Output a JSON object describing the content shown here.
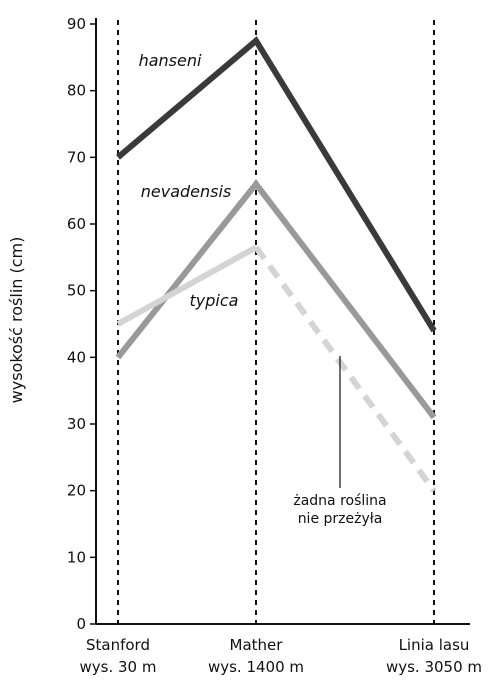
{
  "chart_data": {
    "type": "line",
    "title": "",
    "ylabel": "wysokość roślin (cm)",
    "ylim": [
      0,
      90
    ],
    "yticks": [
      0,
      10,
      20,
      30,
      40,
      50,
      60,
      70,
      80,
      90
    ],
    "categories": [
      {
        "name": "Stanford",
        "sub": "wys. 30 m"
      },
      {
        "name": "Mather",
        "sub": "wys. 1400 m"
      },
      {
        "name": "Linia lasu",
        "sub": "wys. 3050 m"
      }
    ],
    "series": [
      {
        "name": "hanseni",
        "values": [
          70,
          87.5,
          44
        ],
        "color": "#3a3a3a",
        "dashed_from": null
      },
      {
        "name": "nevadensis",
        "values": [
          40,
          66,
          31
        ],
        "color": "#999999",
        "dashed_from": null
      },
      {
        "name": "typica",
        "values": [
          45,
          56.5,
          20
        ],
        "color": "#d4d4d4",
        "dashed_from": 1
      }
    ],
    "annotation": {
      "lines": [
        "żadna roślina",
        "nie przeżyła"
      ]
    },
    "grid": false,
    "vertical_dashed_lines": true
  }
}
